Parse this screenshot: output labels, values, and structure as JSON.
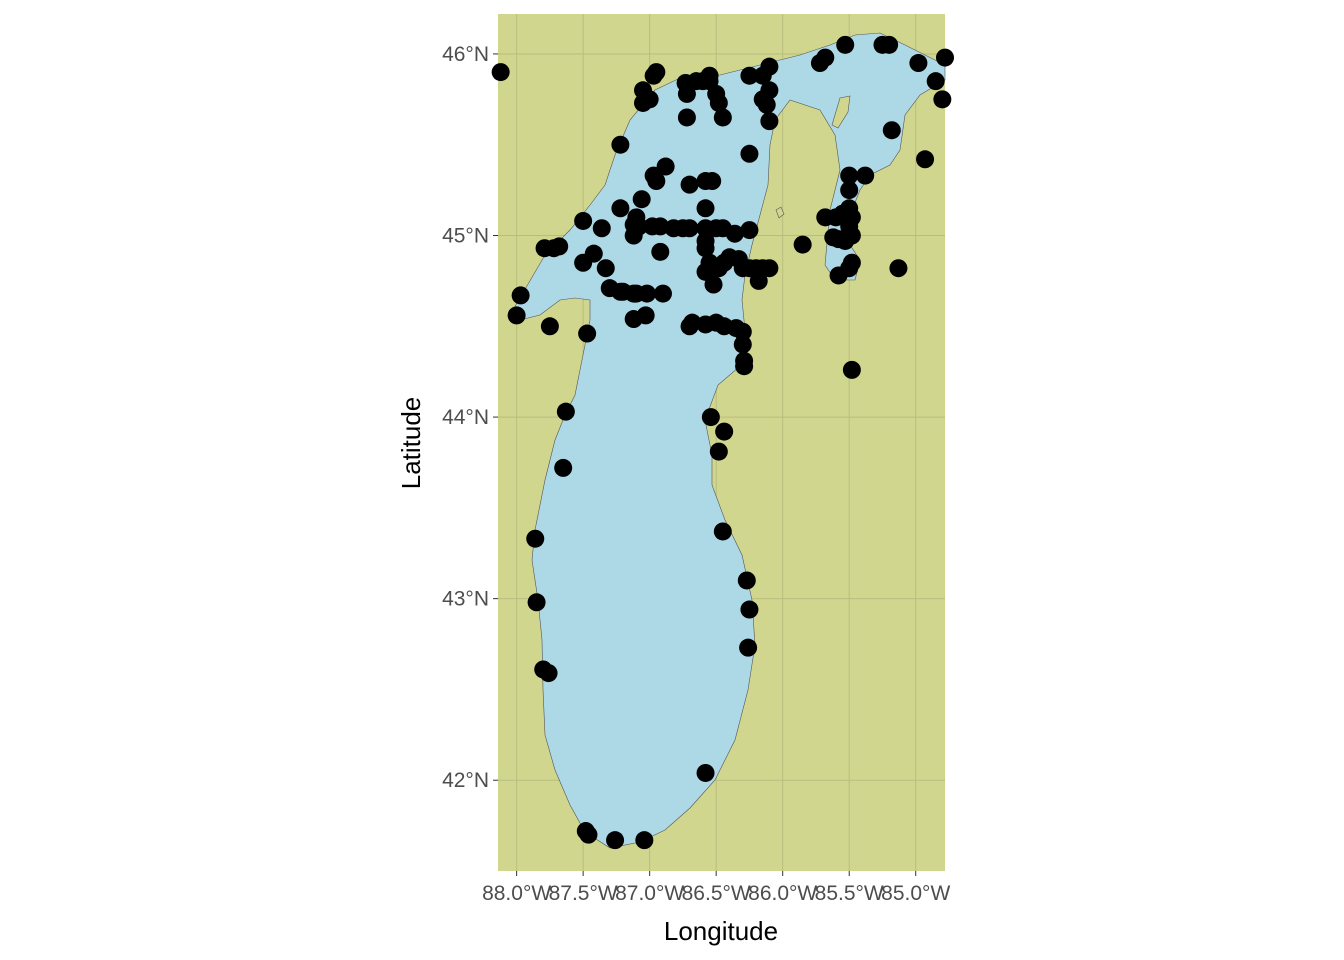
{
  "chart_data": {
    "type": "scatter",
    "xlabel": "Longitude",
    "ylabel": "Latitude",
    "xlim": [
      -88.14,
      -84.78
    ],
    "ylim": [
      41.5,
      46.22
    ],
    "x_ticks": [
      {
        "value": -88.0,
        "label": "88.0°W"
      },
      {
        "value": -87.5,
        "label": "87.5°W"
      },
      {
        "value": -87.0,
        "label": "87.0°W"
      },
      {
        "value": -86.5,
        "label": "86.5°W"
      },
      {
        "value": -86.0,
        "label": "86.0°W"
      },
      {
        "value": -85.5,
        "label": "85.5°W"
      },
      {
        "value": -85.0,
        "label": "85.0°W"
      }
    ],
    "y_ticks": [
      {
        "value": 42,
        "label": "42°N"
      },
      {
        "value": 43,
        "label": "43°N"
      },
      {
        "value": 44,
        "label": "44°N"
      },
      {
        "value": 45,
        "label": "45°N"
      },
      {
        "value": 46,
        "label": "46°N"
      }
    ],
    "grid": true,
    "colors": {
      "land": "#d1d68f",
      "water": "#add8e6",
      "points": "#000000",
      "grid": "#b8bd7e"
    },
    "points": [
      [
        -88.12,
        45.9
      ],
      [
        -87.97,
        44.67
      ],
      [
        -88.0,
        44.56
      ],
      [
        -87.75,
        44.5
      ],
      [
        -87.47,
        44.46
      ],
      [
        -87.63,
        44.03
      ],
      [
        -87.65,
        43.72
      ],
      [
        -87.86,
        43.33
      ],
      [
        -87.85,
        42.98
      ],
      [
        -87.8,
        42.61
      ],
      [
        -87.76,
        42.59
      ],
      [
        -87.48,
        41.72
      ],
      [
        -87.46,
        41.7
      ],
      [
        -87.26,
        41.67
      ],
      [
        -87.04,
        41.67
      ],
      [
        -86.58,
        42.04
      ],
      [
        -86.26,
        42.73
      ],
      [
        -86.25,
        42.94
      ],
      [
        -86.27,
        43.1
      ],
      [
        -86.45,
        43.37
      ],
      [
        -86.48,
        43.81
      ],
      [
        -86.44,
        43.92
      ],
      [
        -86.54,
        44.0
      ],
      [
        -86.29,
        44.28
      ],
      [
        -86.29,
        44.31
      ],
      [
        -86.3,
        44.4
      ],
      [
        -86.3,
        44.47
      ],
      [
        -86.35,
        44.49
      ],
      [
        -86.44,
        44.5
      ],
      [
        -86.5,
        44.52
      ],
      [
        -86.58,
        44.51
      ],
      [
        -86.68,
        44.52
      ],
      [
        -87.03,
        44.56
      ],
      [
        -87.12,
        44.54
      ],
      [
        -86.9,
        44.68
      ],
      [
        -87.02,
        44.68
      ],
      [
        -87.1,
        44.68
      ],
      [
        -87.2,
        44.69
      ],
      [
        -87.3,
        44.71
      ],
      [
        -87.33,
        44.82
      ],
      [
        -87.5,
        44.85
      ],
      [
        -87.42,
        44.9
      ],
      [
        -87.68,
        44.94
      ],
      [
        -87.72,
        44.93
      ],
      [
        -87.79,
        44.93
      ],
      [
        -87.5,
        45.08
      ],
      [
        -87.36,
        45.04
      ],
      [
        -87.22,
        45.15
      ],
      [
        -87.1,
        45.1
      ],
      [
        -87.06,
        45.2
      ],
      [
        -87.08,
        45.05
      ],
      [
        -87.12,
        45.06
      ],
      [
        -87.12,
        45.0
      ],
      [
        -86.98,
        45.05
      ],
      [
        -86.92,
        45.05
      ],
      [
        -86.82,
        45.04
      ],
      [
        -86.75,
        45.04
      ],
      [
        -86.7,
        45.04
      ],
      [
        -86.58,
        45.04
      ],
      [
        -86.5,
        45.04
      ],
      [
        -86.45,
        45.04
      ],
      [
        -86.36,
        45.01
      ],
      [
        -86.25,
        45.03
      ],
      [
        -86.58,
        44.97
      ],
      [
        -86.58,
        44.93
      ],
      [
        -86.55,
        44.85
      ],
      [
        -86.58,
        44.8
      ],
      [
        -86.52,
        44.73
      ],
      [
        -86.48,
        44.82
      ],
      [
        -86.44,
        44.85
      ],
      [
        -86.4,
        44.88
      ],
      [
        -86.33,
        44.87
      ],
      [
        -86.3,
        44.82
      ],
      [
        -86.25,
        44.82
      ],
      [
        -86.2,
        44.82
      ],
      [
        -86.15,
        44.82
      ],
      [
        -86.1,
        44.82
      ],
      [
        -86.18,
        44.75
      ],
      [
        -86.58,
        45.15
      ],
      [
        -86.58,
        45.3
      ],
      [
        -86.53,
        45.3
      ],
      [
        -86.7,
        45.28
      ],
      [
        -86.95,
        45.3
      ],
      [
        -86.88,
        45.38
      ],
      [
        -86.97,
        45.33
      ],
      [
        -86.92,
        44.91
      ],
      [
        -87.22,
        45.5
      ],
      [
        -86.25,
        45.45
      ],
      [
        -85.85,
        44.95
      ],
      [
        -85.68,
        45.1
      ],
      [
        -85.6,
        45.1
      ],
      [
        -85.55,
        45.12
      ],
      [
        -85.5,
        45.15
      ],
      [
        -85.48,
        45.1
      ],
      [
        -85.5,
        45.05
      ],
      [
        -85.48,
        45.0
      ],
      [
        -85.53,
        44.97
      ],
      [
        -85.58,
        44.98
      ],
      [
        -85.62,
        44.99
      ],
      [
        -85.5,
        45.25
      ],
      [
        -85.5,
        45.33
      ],
      [
        -85.38,
        45.33
      ],
      [
        -85.48,
        44.85
      ],
      [
        -85.5,
        44.82
      ],
      [
        -85.58,
        44.78
      ],
      [
        -85.13,
        44.82
      ],
      [
        -85.48,
        44.26
      ],
      [
        -85.18,
        45.58
      ],
      [
        -84.93,
        45.42
      ],
      [
        -84.98,
        45.95
      ],
      [
        -84.85,
        45.85
      ],
      [
        -84.8,
        45.75
      ],
      [
        -84.78,
        45.98
      ],
      [
        -85.2,
        46.05
      ],
      [
        -85.25,
        46.05
      ],
      [
        -85.53,
        46.05
      ],
      [
        -85.68,
        45.98
      ],
      [
        -85.72,
        45.95
      ],
      [
        -86.1,
        45.93
      ],
      [
        -86.15,
        45.88
      ],
      [
        -86.25,
        45.88
      ],
      [
        -86.1,
        45.8
      ],
      [
        -86.15,
        45.75
      ],
      [
        -86.1,
        45.63
      ],
      [
        -86.12,
        45.72
      ],
      [
        -86.45,
        45.65
      ],
      [
        -86.48,
        45.73
      ],
      [
        -86.5,
        45.78
      ],
      [
        -86.55,
        45.85
      ],
      [
        -86.55,
        45.88
      ],
      [
        -86.6,
        45.85
      ],
      [
        -86.65,
        45.85
      ],
      [
        -86.73,
        45.84
      ],
      [
        -86.72,
        45.78
      ],
      [
        -86.72,
        45.65
      ],
      [
        -86.95,
        45.9
      ],
      [
        -86.97,
        45.88
      ],
      [
        -87.05,
        45.8
      ],
      [
        -87.0,
        45.75
      ],
      [
        -87.05,
        45.73
      ],
      [
        -87.22,
        44.69
      ],
      [
        -87.12,
        44.68
      ],
      [
        -86.7,
        44.5
      ]
    ]
  }
}
